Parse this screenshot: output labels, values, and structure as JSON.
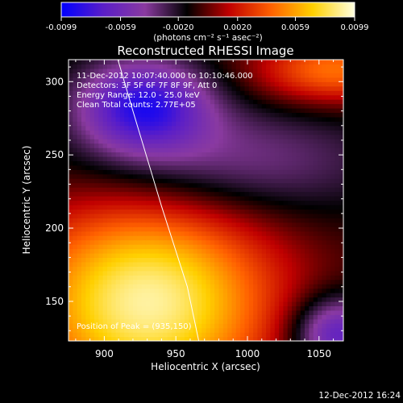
{
  "chart_data": {
    "type": "heatmap",
    "title": "Reconstructed RHESSI Image",
    "xlabel": "Heliocentric X (arcsec)",
    "ylabel": "Heliocentric Y (arcsec)",
    "xlim": [
      875,
      1067
    ],
    "ylim": [
      123,
      315
    ],
    "x_ticks": [
      900,
      950,
      1000,
      1050
    ],
    "y_ticks": [
      150,
      200,
      250,
      300
    ],
    "colorbar": {
      "vmin": -0.0099,
      "vmax": 0.0099,
      "tick_values": [
        -0.0099,
        -0.0059,
        -0.002,
        0.002,
        0.0059,
        0.0099
      ],
      "tick_labels": [
        "-0.0099",
        "-0.0059",
        "-0.0020",
        "0.0020",
        "0.0059",
        "0.0099"
      ],
      "units": "(photons cm⁻² s⁻¹ asec⁻²)",
      "colors": [
        "#0000ff",
        "#5a1ec8",
        "#8a3aa0",
        "#000000",
        "#c00000",
        "#ff6000",
        "#ffd000",
        "#ffffe0"
      ]
    },
    "sources": [
      {
        "x": 930,
        "y": 150,
        "sx": 62,
        "sy": 50,
        "amp": 0.0099
      },
      {
        "x": 927,
        "y": 284,
        "sx": 32,
        "sy": 22,
        "amp": -0.0075
      },
      {
        "x": 985,
        "y": 245,
        "sx": 75,
        "sy": 28,
        "amp": -0.0035
      },
      {
        "x": 1062,
        "y": 128,
        "sx": 22,
        "sy": 18,
        "amp": -0.0065
      },
      {
        "x": 1060,
        "y": 308,
        "sx": 38,
        "sy": 16,
        "amp": 0.0055
      }
    ],
    "limb_curve": {
      "x": [
        902,
        920,
        940,
        958,
        966
      ],
      "y": [
        340,
        280,
        215,
        160,
        123
      ]
    },
    "annotations": [
      "11-Dec-2012 10:07:40.000 to 10:10:46.000",
      "Detectors: 3F 5F 6F 7F 8F 9F, Att 0",
      "Energy Range: 12.0 - 25.0 keV",
      "Clean    Total counts: 2.77E+05"
    ],
    "footer_left": "Position of Peak = (935,150)",
    "timestamp": "12-Dec-2012 16:24"
  }
}
